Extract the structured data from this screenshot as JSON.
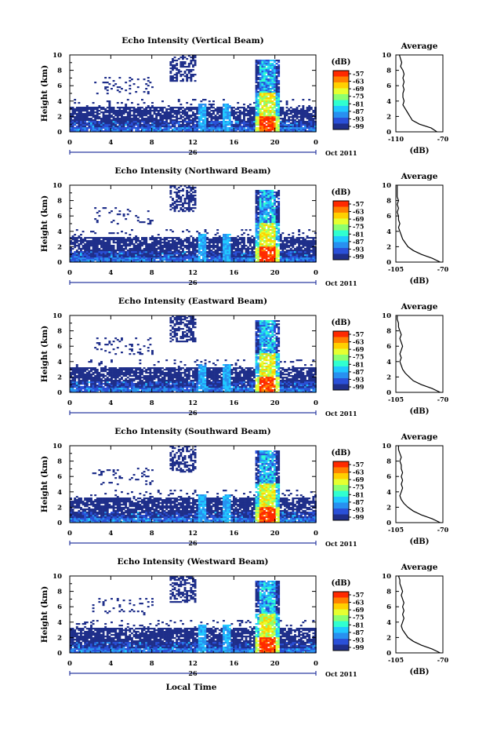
{
  "chart_data": [
    {
      "type": "heatmap",
      "title": "Echo Intensity (Vertical Beam)",
      "ylabel": "Height (km)",
      "x_ticks": [
        "0",
        "4",
        "8",
        "12",
        "16",
        "20",
        "0"
      ],
      "y_ticks": [
        "0",
        "2",
        "4",
        "6",
        "8",
        "10"
      ],
      "xlim": [
        0,
        24
      ],
      "ylim": [
        0,
        10
      ],
      "colorbar": {
        "unit": "(dB)",
        "ticks": [
          "-57",
          "-63",
          "-69",
          "-75",
          "-81",
          "-87",
          "-93",
          "-99"
        ]
      },
      "date_axis": {
        "label": "26",
        "suffix": "Oct 2011"
      },
      "average": {
        "title": "Average",
        "xlabel": "(dB)",
        "x_ticks": [
          "-110",
          "-70"
        ],
        "y_ticks": [
          "0",
          "2",
          "4",
          "6",
          "8",
          "10"
        ],
        "xlim": [
          -110,
          -70
        ],
        "profile": [
          [
            0,
            -75
          ],
          [
            0.5,
            -80
          ],
          [
            1,
            -90
          ],
          [
            1.5,
            -96
          ],
          [
            2,
            -98
          ],
          [
            2.5,
            -100
          ],
          [
            3,
            -102
          ],
          [
            3.5,
            -104
          ],
          [
            4,
            -103
          ],
          [
            4.5,
            -104
          ],
          [
            5,
            -104
          ],
          [
            5.5,
            -103
          ],
          [
            6,
            -104
          ],
          [
            6.5,
            -103
          ],
          [
            7,
            -104
          ],
          [
            7.5,
            -103
          ],
          [
            8,
            -104
          ],
          [
            8.5,
            -106
          ],
          [
            9,
            -105
          ],
          [
            9.5,
            -106
          ],
          [
            10,
            -107
          ]
        ]
      }
    },
    {
      "type": "heatmap",
      "title": "Echo Intensity (Northward Beam)",
      "ylabel": "Height (km)",
      "x_ticks": [
        "0",
        "4",
        "8",
        "12",
        "16",
        "20",
        "0"
      ],
      "y_ticks": [
        "0",
        "2",
        "4",
        "6",
        "8",
        "10"
      ],
      "xlim": [
        0,
        24
      ],
      "ylim": [
        0,
        10
      ],
      "colorbar": {
        "unit": "(dB)",
        "ticks": [
          "-57",
          "-63",
          "-69",
          "-75",
          "-81",
          "-87",
          "-93",
          "-99"
        ]
      },
      "date_axis": {
        "label": "26",
        "suffix": "Oct 2011"
      },
      "average": {
        "title": "Average",
        "xlabel": "(dB)",
        "x_ticks": [
          "-105",
          "-70"
        ],
        "y_ticks": [
          "0",
          "2",
          "4",
          "6",
          "8",
          "10"
        ],
        "xlim": [
          -105,
          -70
        ],
        "profile": [
          [
            0,
            -72
          ],
          [
            0.5,
            -78
          ],
          [
            1,
            -86
          ],
          [
            1.5,
            -92
          ],
          [
            2,
            -96
          ],
          [
            2.5,
            -98
          ],
          [
            3,
            -100
          ],
          [
            3.5,
            -101
          ],
          [
            4,
            -102
          ],
          [
            4.5,
            -103
          ],
          [
            5,
            -102
          ],
          [
            5.5,
            -103
          ],
          [
            6,
            -103
          ],
          [
            6.5,
            -104
          ],
          [
            7,
            -103
          ],
          [
            7.5,
            -104
          ],
          [
            8,
            -103
          ],
          [
            8.5,
            -104
          ],
          [
            9,
            -104
          ],
          [
            9.5,
            -104
          ],
          [
            10,
            -104
          ]
        ]
      }
    },
    {
      "type": "heatmap",
      "title": "Echo Intensity (Eastward Beam)",
      "ylabel": "Height (km)",
      "x_ticks": [
        "0",
        "4",
        "8",
        "12",
        "16",
        "20",
        "0"
      ],
      "y_ticks": [
        "0",
        "2",
        "4",
        "6",
        "8",
        "10"
      ],
      "xlim": [
        0,
        24
      ],
      "ylim": [
        0,
        10
      ],
      "colorbar": {
        "unit": "(dB)",
        "ticks": [
          "-57",
          "-63",
          "-69",
          "-75",
          "-81",
          "-87",
          "-93",
          "-99"
        ]
      },
      "date_axis": {
        "label": "26",
        "suffix": "Oct 2011"
      },
      "average": {
        "title": "Average",
        "xlabel": "(dB)",
        "x_ticks": [
          "-105",
          "-70"
        ],
        "y_ticks": [
          "0",
          "2",
          "4",
          "6",
          "8",
          "10"
        ],
        "xlim": [
          -105,
          -70
        ],
        "profile": [
          [
            0,
            -72
          ],
          [
            0.5,
            -78
          ],
          [
            1,
            -86
          ],
          [
            1.5,
            -92
          ],
          [
            2,
            -95
          ],
          [
            2.5,
            -98
          ],
          [
            3,
            -100
          ],
          [
            3.5,
            -101
          ],
          [
            4,
            -102
          ],
          [
            4.5,
            -101
          ],
          [
            5,
            -102
          ],
          [
            5.5,
            -101
          ],
          [
            6,
            -100
          ],
          [
            6.5,
            -101
          ],
          [
            7,
            -102
          ],
          [
            7.5,
            -101
          ],
          [
            8,
            -102
          ],
          [
            8.5,
            -103
          ],
          [
            9,
            -103
          ],
          [
            9.5,
            -104
          ],
          [
            10,
            -104
          ]
        ]
      }
    },
    {
      "type": "heatmap",
      "title": "Echo Intensity (Southward Beam)",
      "ylabel": "Height (km)",
      "x_ticks": [
        "0",
        "4",
        "8",
        "12",
        "16",
        "20",
        "0"
      ],
      "y_ticks": [
        "0",
        "2",
        "4",
        "6",
        "8",
        "10"
      ],
      "xlim": [
        0,
        24
      ],
      "ylim": [
        0,
        10
      ],
      "colorbar": {
        "unit": "(dB)",
        "ticks": [
          "-57",
          "-63",
          "-69",
          "-75",
          "-81",
          "-87",
          "-93",
          "-99"
        ]
      },
      "date_axis": {
        "label": "26",
        "suffix": "Oct 2011"
      },
      "average": {
        "title": "Average",
        "xlabel": "(dB)",
        "x_ticks": [
          "-105",
          "-70"
        ],
        "y_ticks": [
          "0",
          "2",
          "4",
          "6",
          "8",
          "10"
        ],
        "xlim": [
          -105,
          -70
        ],
        "profile": [
          [
            0,
            -72
          ],
          [
            0.5,
            -78
          ],
          [
            1,
            -86
          ],
          [
            1.5,
            -92
          ],
          [
            2,
            -96
          ],
          [
            2.5,
            -99
          ],
          [
            3,
            -101
          ],
          [
            3.5,
            -102
          ],
          [
            4,
            -101
          ],
          [
            4.5,
            -100
          ],
          [
            5,
            -101
          ],
          [
            5.5,
            -100
          ],
          [
            6,
            -101
          ],
          [
            6.5,
            -100
          ],
          [
            7,
            -101
          ],
          [
            7.5,
            -101
          ],
          [
            8,
            -102
          ],
          [
            8.5,
            -101
          ],
          [
            9,
            -102
          ],
          [
            9.5,
            -103
          ],
          [
            10,
            -103
          ]
        ]
      }
    },
    {
      "type": "heatmap",
      "title": "Echo Intensity (Westward Beam)",
      "ylabel": "Height (km)",
      "x_ticks": [
        "0",
        "4",
        "8",
        "12",
        "16",
        "20",
        "0"
      ],
      "y_ticks": [
        "0",
        "2",
        "4",
        "6",
        "8",
        "10"
      ],
      "xlim": [
        0,
        24
      ],
      "ylim": [
        0,
        10
      ],
      "colorbar": {
        "unit": "(dB)",
        "ticks": [
          "-57",
          "-63",
          "-69",
          "-75",
          "-81",
          "-87",
          "-93",
          "-99"
        ]
      },
      "date_axis": {
        "label": "26",
        "suffix": "Oct 2011"
      },
      "average": {
        "title": "Average",
        "xlabel": "(dB)",
        "x_ticks": [
          "-105",
          "-70"
        ],
        "y_ticks": [
          "0",
          "2",
          "4",
          "6",
          "8",
          "10"
        ],
        "xlim": [
          -105,
          -70
        ],
        "profile": [
          [
            0,
            -72
          ],
          [
            0.5,
            -78
          ],
          [
            1,
            -86
          ],
          [
            1.5,
            -92
          ],
          [
            2,
            -96
          ],
          [
            2.5,
            -98
          ],
          [
            3,
            -100
          ],
          [
            3.5,
            -101
          ],
          [
            4,
            -100
          ],
          [
            4.5,
            -99
          ],
          [
            5,
            -100
          ],
          [
            5.5,
            -99
          ],
          [
            6,
            -100
          ],
          [
            6.5,
            -99
          ],
          [
            7,
            -100
          ],
          [
            7.5,
            -101
          ],
          [
            8,
            -100
          ],
          [
            8.5,
            -101
          ],
          [
            9,
            -102
          ],
          [
            9.5,
            -102
          ],
          [
            10,
            -103
          ]
        ]
      }
    }
  ],
  "bottom_xlabel": "Local Time",
  "colormap": [
    "#ff2a00",
    "#ff8000",
    "#ffd000",
    "#e6ff30",
    "#8cff70",
    "#30ffd0",
    "#20c8ff",
    "#2890f0",
    "#2a50d8",
    "#1f2f8a"
  ]
}
